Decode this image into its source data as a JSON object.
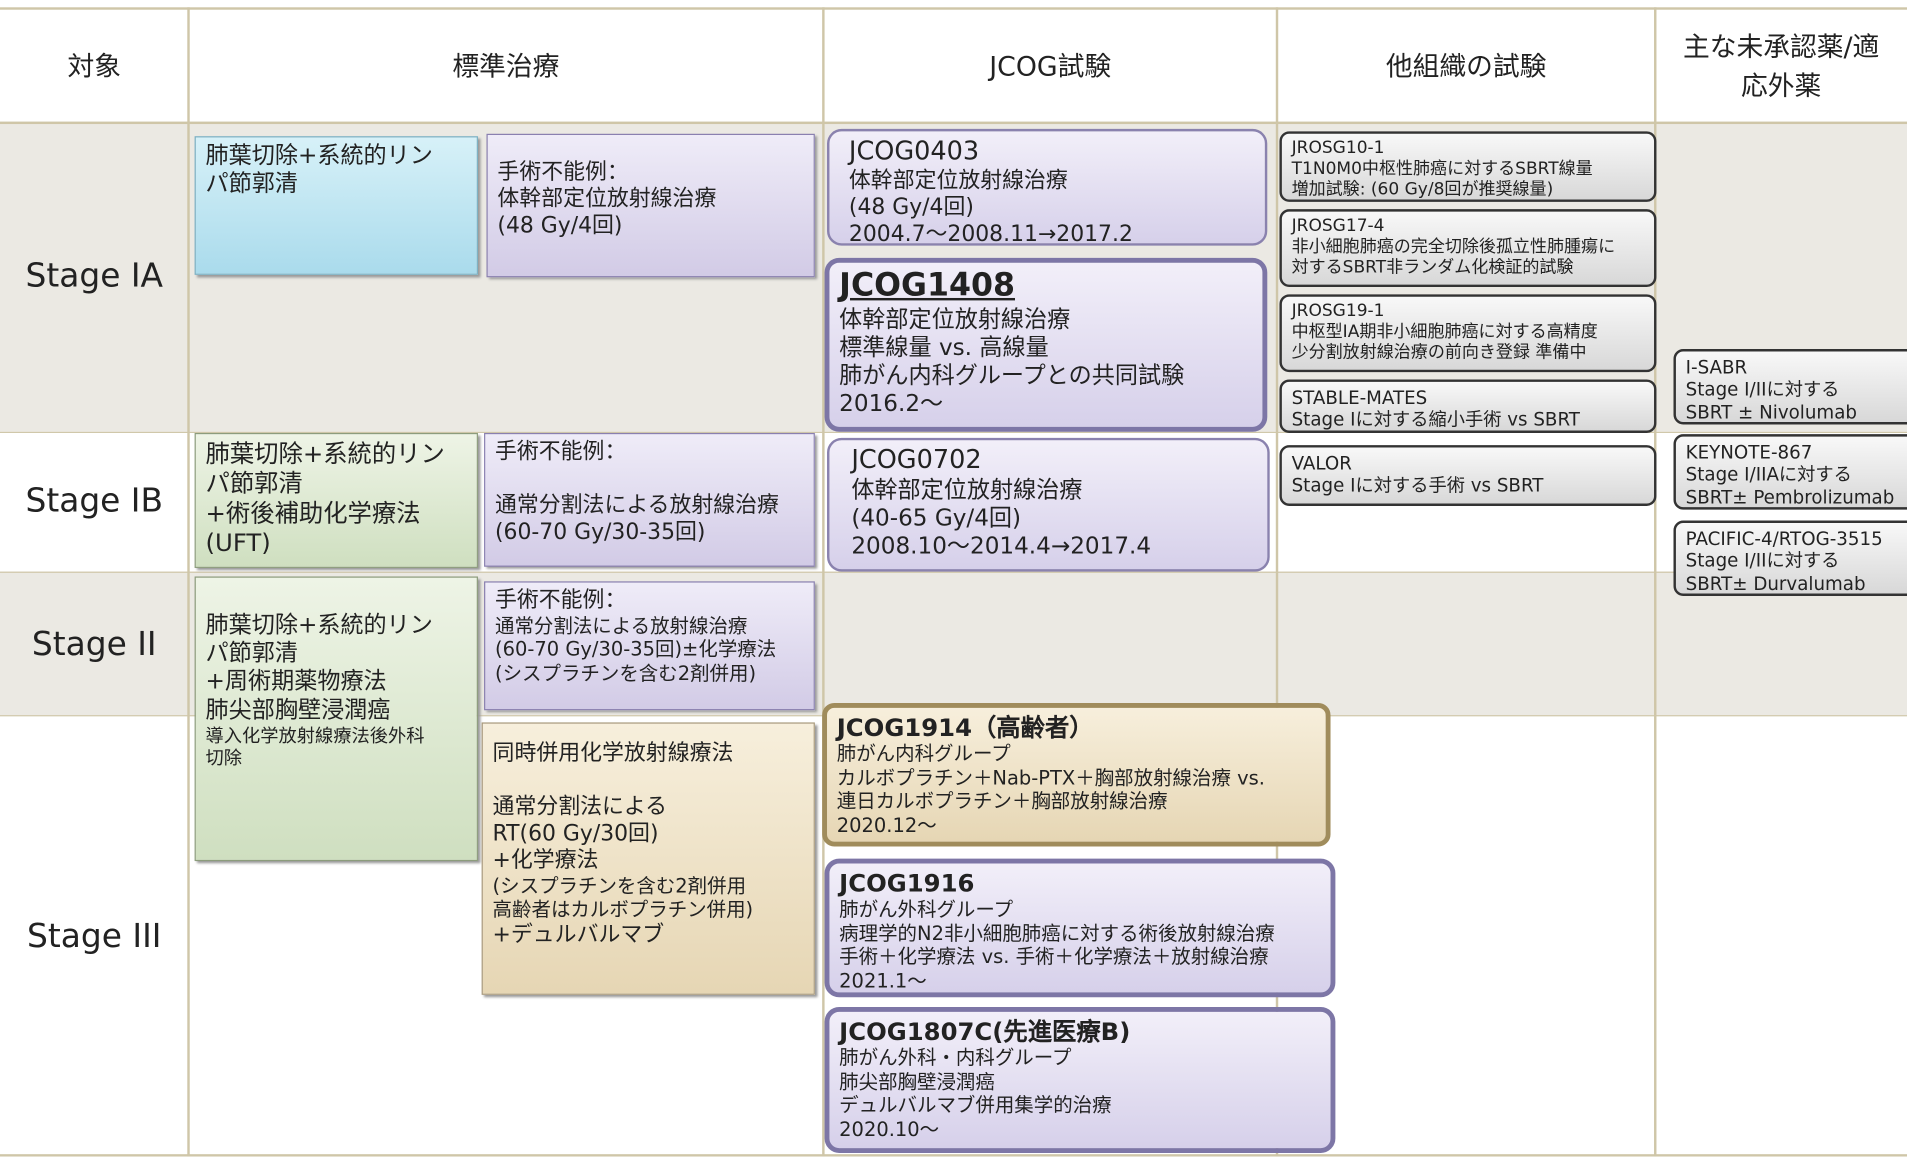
{
  "header": {
    "columns": [
      [
        "対象"
      ],
      [
        "標準治療"
      ],
      [
        "JCOG試験"
      ],
      [
        "他組織の試験"
      ],
      [
        "主な未承認薬/適",
        "応外薬"
      ]
    ]
  },
  "stages": [
    "Stage IA",
    "Stage IB",
    "Stage II",
    "Stage III"
  ],
  "boxes": [
    {
      "lines": [
        "肺葉切除+系統的リン",
        "パ節郭清"
      ]
    },
    {
      "lines": [
        "手術不能例：",
        "体幹部定位放射線治療",
        "(48 Gy/4回)"
      ]
    },
    {
      "lines": [
        "JCOG0403",
        "体幹部定位放射線治療",
        "(48 Gy/4回)",
        "2004.7～2008.11→2017.2"
      ]
    },
    {
      "lines": [
        "JCOG1408",
        "体幹部定位放射線治療",
        "標準線量 vs. 高線量",
        "肺がん内科グループとの共同試験",
        "2016.2～"
      ]
    },
    {
      "lines": [
        "JCOG0702",
        "体幹部定位放射線治療",
        "(40-65 Gy/4回)",
        "2008.10～2014.4→2017.4"
      ]
    },
    {
      "lines": [
        "肺葉切除+系統的リン",
        "パ節郭清",
        "+術後補助化学療法",
        "(UFT)"
      ]
    },
    {
      "lines": [
        "手術不能例：",
        "通常分割法による放射線治療",
        "(60-70 Gy/30-35回)"
      ]
    },
    {
      "lines": [
        "肺葉切除+系統的リン",
        "パ節郭清",
        "+周術期薬物療法",
        "肺尖部胸壁浸潤癌",
        "導入化学放射線療法後外科",
        "切除"
      ]
    },
    {
      "lines": [
        "手術不能例：",
        "通常分割法による放射線治療",
        "(60-70 Gy/30-35回)±化学療法",
        "(シスプラチンを含む2剤併用)"
      ]
    },
    {
      "lines": [
        "同時併用化学放射線療法",
        "通常分割法による",
        "RT(60 Gy/30回)",
        "+化学療法",
        "(シスプラチンを含む2剤併用",
        "高齢者はカルボプラチン併用)",
        "+デュルバルマブ"
      ]
    },
    {
      "lines": [
        "JCOG1914（高齢者）",
        "肺がん内科グループ",
        "カルボプラチン＋Nab-PTX＋胸部放射線治療 vs.",
        "連日カルボプラチン＋胸部放射線治療",
        "2020.12～"
      ]
    },
    {
      "lines": [
        "JCOG1916",
        "肺がん外科グループ",
        "病理学的N2非小細胞肺癌に対する術後放射線治療",
        "手術＋化学療法 vs. 手術＋化学療法＋放射線治療",
        "2021.1～"
      ]
    },
    {
      "lines": [
        "JCOG1807C(先進医療B)",
        "肺がん外科・内科グループ",
        "肺尖部胸壁浸潤癌",
        "デュルバルマブ併用集学的治療",
        "2020.10～"
      ]
    },
    {
      "lines": [
        "JROSG10-1",
        "T1N0M0中枢性肺癌に対するSBRT線量",
        "増加試験: (60 Gy/8回が推奨線量)"
      ]
    },
    {
      "lines": [
        "JROSG17-4",
        "非小細胞肺癌の完全切除後孤立性肺腫瘍に",
        "対するSBRT非ランダム化検証的試験"
      ]
    },
    {
      "lines": [
        "JROSG19-1",
        "中枢型IA期非小細胞肺癌に対する高精度",
        "少分割放射線治療の前向き登録 準備中"
      ]
    },
    {
      "lines": [
        "STABLE-MATES",
        "Stage Iに対する縮小手術 vs SBRT"
      ]
    },
    {
      "lines": [
        "VALOR",
        "Stage Iに対する手術 vs SBRT"
      ]
    },
    {
      "lines": [
        "I-SABR",
        "Stage I/IIに対する",
        "SBRT ± Nivolumab"
      ]
    },
    {
      "lines": [
        "KEYNOTE-867",
        "Stage I/IIAに対する",
        "SBRT± Pembrolizumab"
      ]
    },
    {
      "lines": [
        "PACIFIC-4/RTOG-3515",
        "Stage I/IIに対する",
        "SBRT± Durvalumab"
      ]
    }
  ]
}
